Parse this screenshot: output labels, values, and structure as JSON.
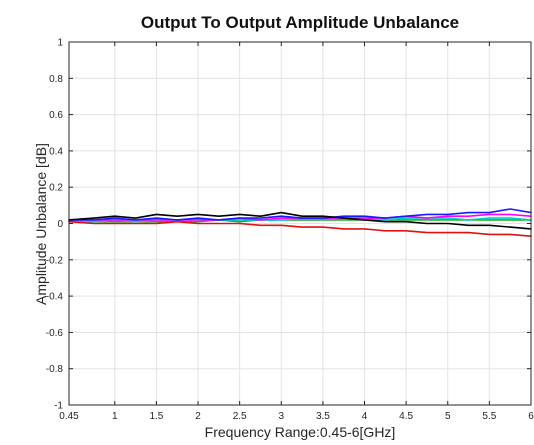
{
  "chart_data": {
    "type": "line",
    "title": "Output To Output Amplitude Unbalance",
    "xlabel": "Frequency Range:0.45-6[GHz]",
    "ylabel": "Amplitude Unbalance [dB]",
    "xlim": [
      0.45,
      6
    ],
    "ylim": [
      -1,
      1
    ],
    "xticks": [
      0.45,
      1,
      1.5,
      2,
      2.5,
      3,
      3.5,
      4,
      4.5,
      5,
      5.5,
      6
    ],
    "xtick_labels": [
      "0.45",
      "1",
      "1.5",
      "2",
      "2.5",
      "3",
      "3.5",
      "4",
      "4.5",
      "5",
      "5.5",
      "6"
    ],
    "yticks": [
      -1,
      -0.8,
      -0.6,
      -0.4,
      -0.2,
      0,
      0.2,
      0.4,
      0.6,
      0.8,
      1
    ],
    "ytick_labels": [
      "-1",
      "-0.8",
      "-0.6",
      "-0.4",
      "-0.2",
      "0",
      "0.2",
      "0.4",
      "0.6",
      "0.8",
      "1"
    ],
    "grid": true,
    "legend": "none",
    "x": [
      0.45,
      0.75,
      1.0,
      1.25,
      1.5,
      1.75,
      2.0,
      2.25,
      2.5,
      2.75,
      3.0,
      3.25,
      3.5,
      3.75,
      4.0,
      4.25,
      4.5,
      4.75,
      5.0,
      5.25,
      5.5,
      5.75,
      6.0
    ],
    "series": [
      {
        "color": "#000000",
        "values": [
          0.02,
          0.03,
          0.04,
          0.03,
          0.05,
          0.04,
          0.05,
          0.04,
          0.05,
          0.04,
          0.06,
          0.04,
          0.04,
          0.03,
          0.02,
          0.01,
          0.01,
          0.0,
          0.0,
          -0.01,
          -0.01,
          -0.02,
          -0.03
        ]
      },
      {
        "color": "#1a1aff",
        "values": [
          0.02,
          0.02,
          0.03,
          0.02,
          0.03,
          0.02,
          0.03,
          0.02,
          0.03,
          0.03,
          0.04,
          0.03,
          0.03,
          0.04,
          0.04,
          0.03,
          0.04,
          0.05,
          0.05,
          0.06,
          0.06,
          0.08,
          0.06
        ]
      },
      {
        "color": "#ff00ff",
        "values": [
          0.02,
          0.02,
          0.02,
          0.02,
          0.02,
          0.02,
          0.02,
          0.02,
          0.03,
          0.02,
          0.03,
          0.03,
          0.03,
          0.03,
          0.03,
          0.03,
          0.04,
          0.03,
          0.04,
          0.04,
          0.05,
          0.05,
          0.04
        ]
      },
      {
        "color": "#00cccc",
        "values": [
          0.01,
          0.01,
          0.02,
          0.01,
          0.02,
          0.02,
          0.02,
          0.02,
          0.02,
          0.02,
          0.02,
          0.03,
          0.03,
          0.03,
          0.03,
          0.02,
          0.03,
          0.03,
          0.03,
          0.02,
          0.03,
          0.03,
          0.02
        ]
      },
      {
        "color": "#22aa22",
        "values": [
          0.01,
          0.01,
          0.01,
          0.01,
          0.01,
          0.01,
          0.01,
          0.02,
          0.01,
          0.02,
          0.02,
          0.02,
          0.02,
          0.02,
          0.02,
          0.02,
          0.02,
          0.02,
          0.02,
          0.02,
          0.02,
          0.02,
          0.02
        ]
      },
      {
        "color": "#e01010",
        "values": [
          0.01,
          0.0,
          0.0,
          0.0,
          0.0,
          0.01,
          0.0,
          0.0,
          0.0,
          -0.01,
          -0.01,
          -0.02,
          -0.02,
          -0.03,
          -0.03,
          -0.04,
          -0.04,
          -0.05,
          -0.05,
          -0.05,
          -0.06,
          -0.06,
          -0.07
        ]
      }
    ]
  }
}
